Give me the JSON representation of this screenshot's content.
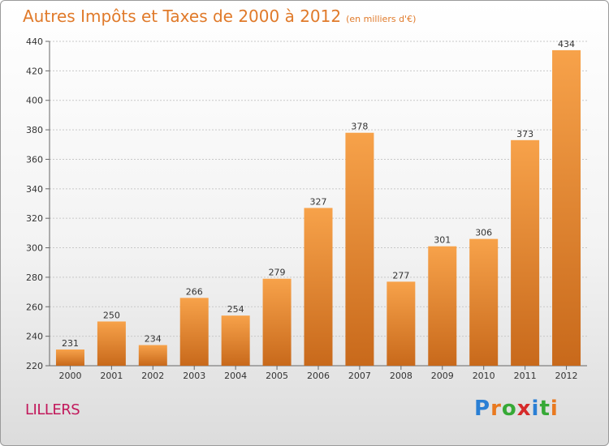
{
  "title": "Autres Impôts et Taxes de 2000 à 2012",
  "subtitle": "(en milliers d'€)",
  "location": "LILLERS",
  "logo": {
    "letters": [
      "P",
      "r",
      "o",
      "x",
      "i",
      "t",
      "i"
    ],
    "colors": [
      "#2a7fd4",
      "#e9791f",
      "#36a936",
      "#d62a2a",
      "#2a7fd4",
      "#36a936",
      "#e9791f"
    ]
  },
  "colors": {
    "bar_light": "#f7a24a",
    "bar_dark": "#c8691b",
    "title": "#e07a2a",
    "location": "#c2185b",
    "grid": "#c8c8c8"
  },
  "chart_data": {
    "type": "bar",
    "title": "Autres Impôts et Taxes de 2000 à 2012",
    "xlabel": "",
    "ylabel": "",
    "categories": [
      "2000",
      "2001",
      "2002",
      "2003",
      "2004",
      "2005",
      "2006",
      "2007",
      "2008",
      "2009",
      "2010",
      "2011",
      "2012"
    ],
    "values": [
      231,
      250,
      234,
      266,
      254,
      279,
      327,
      378,
      277,
      301,
      306,
      373,
      434
    ],
    "ylim": [
      220,
      440
    ],
    "yticks": [
      220,
      240,
      260,
      280,
      300,
      320,
      340,
      360,
      380,
      400,
      420,
      440
    ],
    "grid": true
  }
}
